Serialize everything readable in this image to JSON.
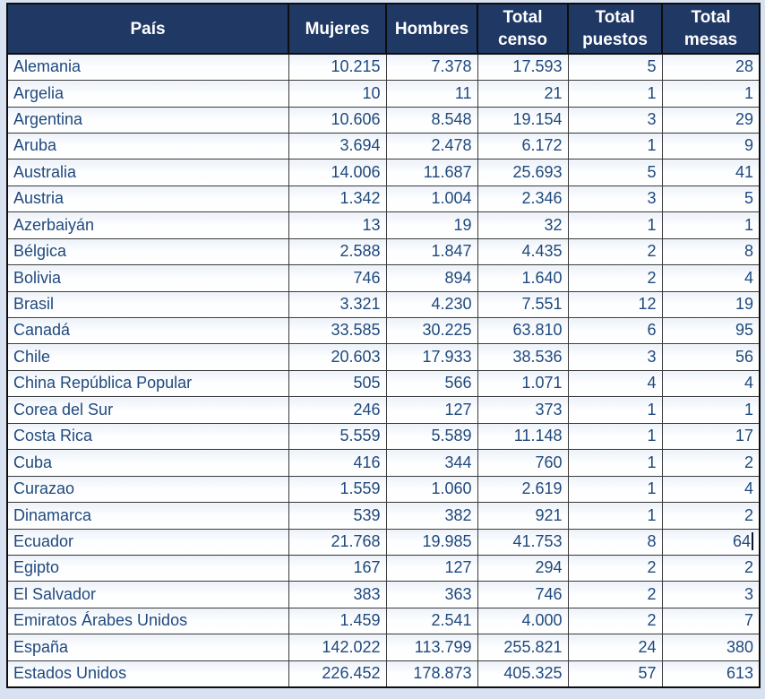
{
  "colors": {
    "header_bg": "#1f3864",
    "header_text": "#ffffff",
    "cell_text": "#1f497d",
    "grid_line": "#3a3a3a",
    "page_bg": "#d9e2f0"
  },
  "table": {
    "columns": [
      {
        "key": "pais",
        "label": "País"
      },
      {
        "key": "mujeres",
        "label": "Mujeres"
      },
      {
        "key": "hombres",
        "label": "Hombres"
      },
      {
        "key": "total_censo",
        "label": "Total censo"
      },
      {
        "key": "total_puestos",
        "label": "Total puestos"
      },
      {
        "key": "total_mesas",
        "label": "Total mesas"
      }
    ],
    "rows": [
      {
        "pais": "Alemania",
        "mujeres": "10.215",
        "hombres": "7.378",
        "total_censo": "17.593",
        "total_puestos": "5",
        "total_mesas": "28"
      },
      {
        "pais": "Argelia",
        "mujeres": "10",
        "hombres": "11",
        "total_censo": "21",
        "total_puestos": "1",
        "total_mesas": "1"
      },
      {
        "pais": "Argentina",
        "mujeres": "10.606",
        "hombres": "8.548",
        "total_censo": "19.154",
        "total_puestos": "3",
        "total_mesas": "29"
      },
      {
        "pais": "Aruba",
        "mujeres": "3.694",
        "hombres": "2.478",
        "total_censo": "6.172",
        "total_puestos": "1",
        "total_mesas": "9"
      },
      {
        "pais": "Australia",
        "mujeres": "14.006",
        "hombres": "11.687",
        "total_censo": "25.693",
        "total_puestos": "5",
        "total_mesas": "41"
      },
      {
        "pais": "Austria",
        "mujeres": "1.342",
        "hombres": "1.004",
        "total_censo": "2.346",
        "total_puestos": "3",
        "total_mesas": "5"
      },
      {
        "pais": "Azerbaiyán",
        "mujeres": "13",
        "hombres": "19",
        "total_censo": "32",
        "total_puestos": "1",
        "total_mesas": "1"
      },
      {
        "pais": "Bélgica",
        "mujeres": "2.588",
        "hombres": "1.847",
        "total_censo": "4.435",
        "total_puestos": "2",
        "total_mesas": "8"
      },
      {
        "pais": "Bolivia",
        "mujeres": "746",
        "hombres": "894",
        "total_censo": "1.640",
        "total_puestos": "2",
        "total_mesas": "4"
      },
      {
        "pais": "Brasil",
        "mujeres": "3.321",
        "hombres": "4.230",
        "total_censo": "7.551",
        "total_puestos": "12",
        "total_mesas": "19"
      },
      {
        "pais": "Canadá",
        "mujeres": "33.585",
        "hombres": "30.225",
        "total_censo": "63.810",
        "total_puestos": "6",
        "total_mesas": "95"
      },
      {
        "pais": "Chile",
        "mujeres": "20.603",
        "hombres": "17.933",
        "total_censo": "38.536",
        "total_puestos": "3",
        "total_mesas": "56"
      },
      {
        "pais": "China República Popular",
        "mujeres": "505",
        "hombres": "566",
        "total_censo": "1.071",
        "total_puestos": "4",
        "total_mesas": "4"
      },
      {
        "pais": "Corea del Sur",
        "mujeres": "246",
        "hombres": "127",
        "total_censo": "373",
        "total_puestos": "1",
        "total_mesas": "1"
      },
      {
        "pais": "Costa Rica",
        "mujeres": "5.559",
        "hombres": "5.589",
        "total_censo": "11.148",
        "total_puestos": "1",
        "total_mesas": "17"
      },
      {
        "pais": "Cuba",
        "mujeres": "416",
        "hombres": "344",
        "total_censo": "760",
        "total_puestos": "1",
        "total_mesas": "2"
      },
      {
        "pais": "Curazao",
        "mujeres": "1.559",
        "hombres": "1.060",
        "total_censo": "2.619",
        "total_puestos": "1",
        "total_mesas": "4"
      },
      {
        "pais": "Dinamarca",
        "mujeres": "539",
        "hombres": "382",
        "total_censo": "921",
        "total_puestos": "1",
        "total_mesas": "2"
      },
      {
        "pais": "Ecuador",
        "mujeres": "21.768",
        "hombres": "19.985",
        "total_censo": "41.753",
        "total_puestos": "8",
        "total_mesas": "64"
      },
      {
        "pais": "Egipto",
        "mujeres": "167",
        "hombres": "127",
        "total_censo": "294",
        "total_puestos": "2",
        "total_mesas": "2"
      },
      {
        "pais": "El Salvador",
        "mujeres": "383",
        "hombres": "363",
        "total_censo": "746",
        "total_puestos": "2",
        "total_mesas": "3"
      },
      {
        "pais": "Emiratos Árabes Unidos",
        "mujeres": "1.459",
        "hombres": "2.541",
        "total_censo": "4.000",
        "total_puestos": "2",
        "total_mesas": "7"
      },
      {
        "pais": "España",
        "mujeres": "142.022",
        "hombres": "113.799",
        "total_censo": "255.821",
        "total_puestos": "24",
        "total_mesas": "380"
      },
      {
        "pais": "Estados Unidos",
        "mujeres": "226.452",
        "hombres": "178.873",
        "total_censo": "405.325",
        "total_puestos": "57",
        "total_mesas": "613"
      }
    ],
    "caret": {
      "row_index": 18,
      "column": "total_mesas"
    }
  }
}
